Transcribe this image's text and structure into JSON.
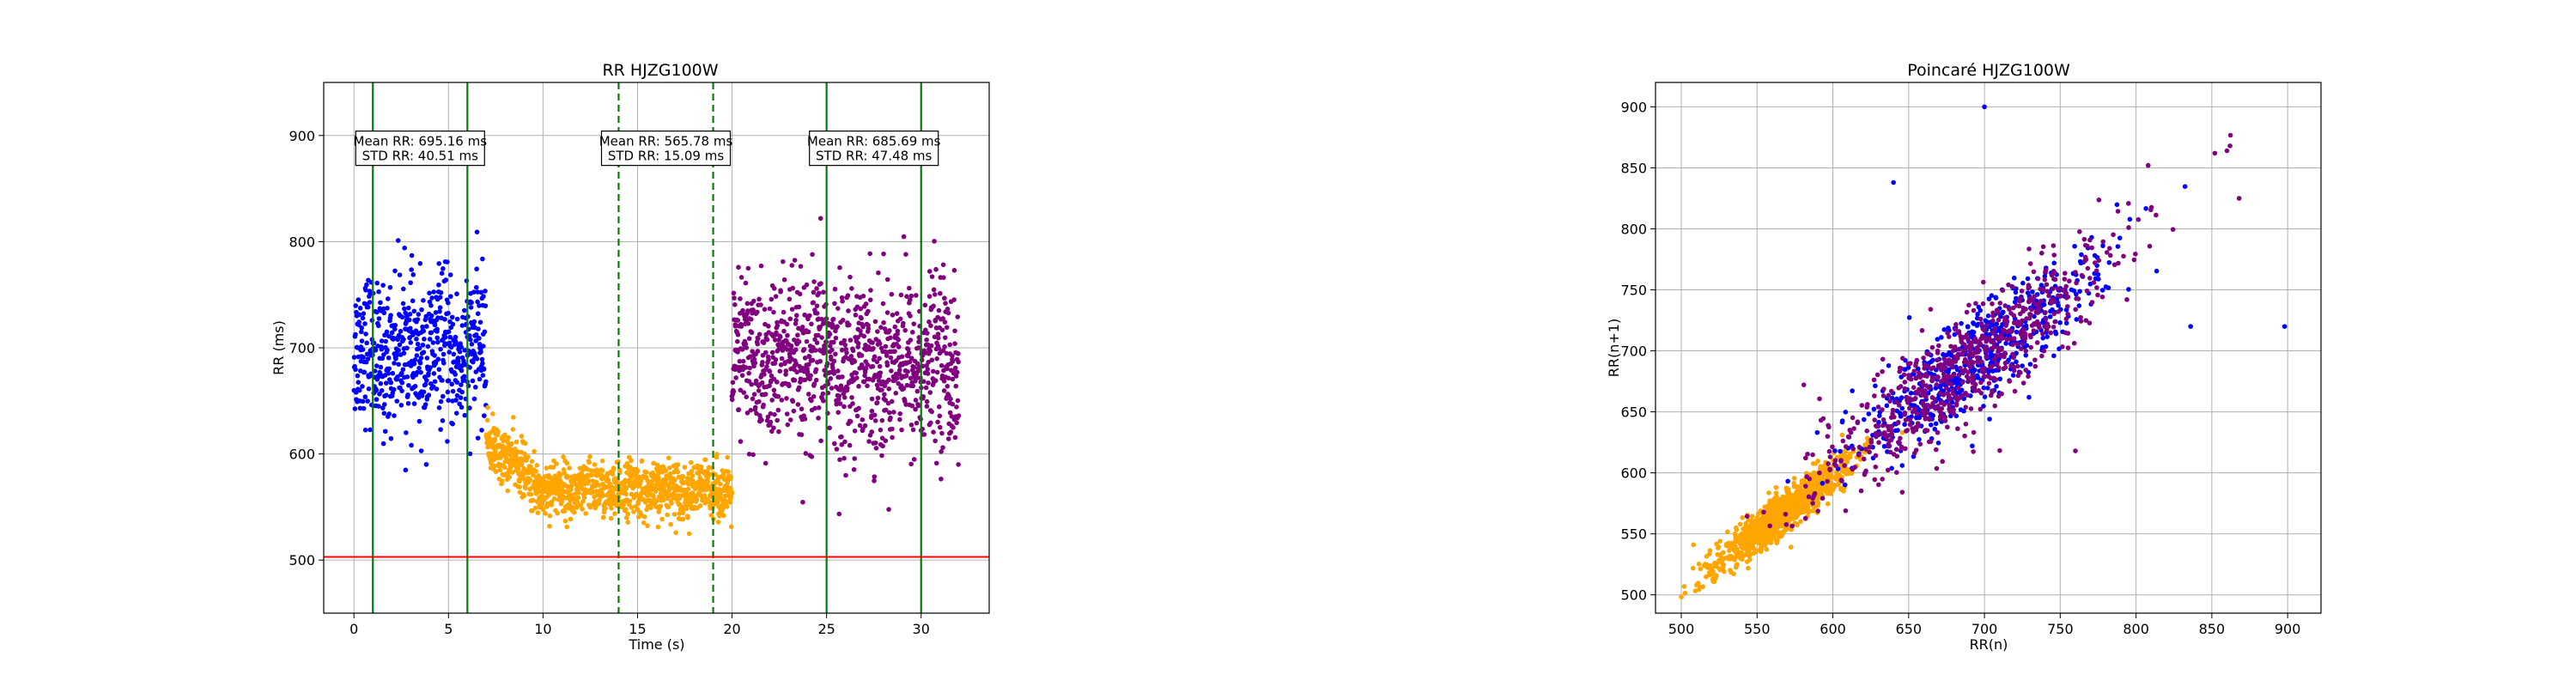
{
  "colors": {
    "blue": "#0000ff",
    "orange": "#ffa500",
    "purple": "#800080",
    "green": "#008000",
    "red": "#ff0000",
    "grid": "#b0b0b0"
  },
  "chart_data": [
    {
      "type": "scatter",
      "title": "RR HJZG100W",
      "xlabel": "Time (s)",
      "ylabel": "RR (ms)",
      "xlim": [
        -1.6,
        33.6
      ],
      "ylim": [
        450,
        950
      ],
      "xticks": [
        0,
        5,
        10,
        15,
        20,
        25,
        30
      ],
      "yticks": [
        500,
        600,
        700,
        800,
        900
      ],
      "grid": true,
      "series": [
        {
          "color": "blue",
          "x_range": [
            0,
            7
          ],
          "center": 695,
          "spread": 40
        },
        {
          "color": "orange",
          "x_range": [
            7,
            20
          ],
          "center": 566,
          "spread": 15
        },
        {
          "color": "purple",
          "x_range": [
            20,
            32
          ],
          "center": 686,
          "spread": 47
        }
      ],
      "vlines": [
        {
          "x": 1,
          "color": "green",
          "style": "solid"
        },
        {
          "x": 6,
          "color": "green",
          "style": "solid"
        },
        {
          "x": 14,
          "color": "green",
          "style": "dashed"
        },
        {
          "x": 19,
          "color": "green",
          "style": "dashed"
        },
        {
          "x": 25,
          "color": "green",
          "style": "solid"
        },
        {
          "x": 30,
          "color": "green",
          "style": "solid"
        }
      ],
      "hlines": [
        {
          "y": 503,
          "color": "red",
          "style": "solid"
        }
      ],
      "annotations": [
        {
          "x": 3.5,
          "y": 888,
          "line1": "Mean RR: 695.16 ms",
          "line2": "STD RR: 40.51 ms"
        },
        {
          "x": 16.5,
          "y": 888,
          "line1": "Mean RR: 565.78 ms",
          "line2": "STD RR: 15.09 ms"
        },
        {
          "x": 27.5,
          "y": 888,
          "line1": "Mean RR: 685.69 ms",
          "line2": "STD RR: 47.48 ms"
        }
      ]
    },
    {
      "type": "scatter",
      "title": "Poincaré HJZG100W",
      "xlabel": "RR(n)",
      "ylabel": "RR(n+1)",
      "xlim": [
        483,
        922
      ],
      "ylim": [
        485,
        920
      ],
      "xticks": [
        500,
        550,
        600,
        650,
        700,
        750,
        800,
        850,
        900
      ],
      "yticks": [
        500,
        550,
        600,
        650,
        700,
        750,
        800,
        850,
        900
      ],
      "grid": true,
      "series": [
        {
          "color": "orange",
          "center": 566,
          "spread": 17,
          "x_range": [
            500,
            660
          ]
        },
        {
          "color": "blue",
          "center": 695,
          "spread": 40,
          "x_range": [
            590,
            800
          ]
        },
        {
          "color": "purple",
          "center": 686,
          "spread": 47,
          "x_range": [
            540,
            810
          ]
        }
      ],
      "outliers": [
        {
          "x": 700,
          "y": 900,
          "color": "blue"
        },
        {
          "x": 898,
          "y": 720,
          "color": "blue"
        },
        {
          "x": 640,
          "y": 838,
          "color": "blue"
        },
        {
          "x": 852,
          "y": 862,
          "color": "purple"
        },
        {
          "x": 862,
          "y": 868,
          "color": "purple"
        },
        {
          "x": 860,
          "y": 864,
          "color": "purple"
        },
        {
          "x": 868,
          "y": 825,
          "color": "purple"
        },
        {
          "x": 808,
          "y": 852,
          "color": "purple"
        },
        {
          "x": 760,
          "y": 618,
          "color": "purple"
        },
        {
          "x": 836,
          "y": 720,
          "color": "blue"
        }
      ]
    }
  ]
}
